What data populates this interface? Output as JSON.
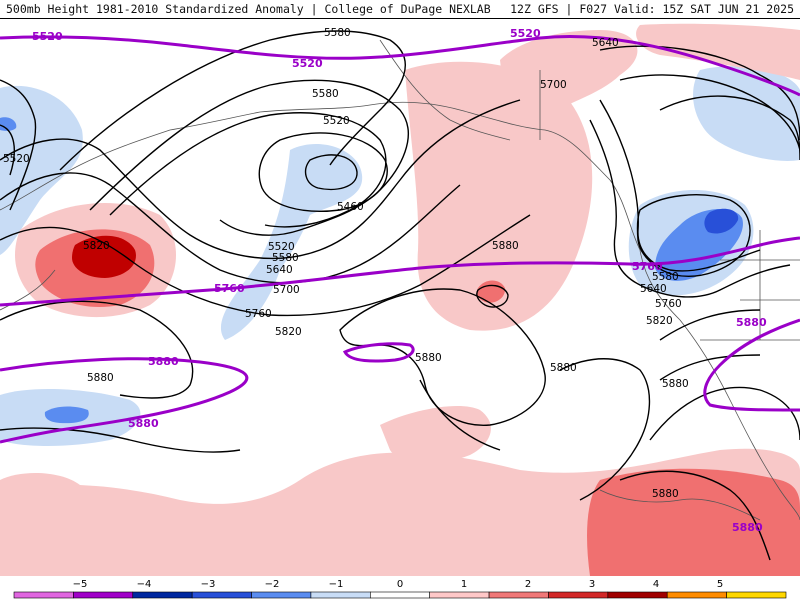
{
  "header": {
    "title": "500mb Height 1981-2010 Standardized Anomaly | College of DuPage NEXLAB",
    "run_info": "12Z GFS | F027 Valid: 15Z SAT JUN 21 2025"
  },
  "contours": {
    "black_labels": [
      "5580",
      "5580",
      "5520",
      "5520",
      "5460",
      "5520",
      "5580",
      "5640",
      "5700",
      "5760",
      "5820",
      "5880",
      "5880",
      "5880",
      "5880",
      "5700",
      "5640",
      "5580",
      "5640",
      "5760",
      "5820",
      "5880",
      "5880",
      "5820"
    ],
    "purple_labels": [
      "5520",
      "5520",
      "5520",
      "5760",
      "5760",
      "5880",
      "5880",
      "5880",
      "5880"
    ]
  },
  "colorbar": {
    "ticks": [
      "−5",
      "−4",
      "−3",
      "−2",
      "−1",
      "0",
      "1",
      "2",
      "3",
      "4",
      "5"
    ],
    "colors": [
      "#e066e0",
      "#a000c8",
      "#0028a0",
      "#2850d8",
      "#5a8cf0",
      "#c8dcf5",
      "#ffffff",
      "#ffc8c8",
      "#f07878",
      "#d22828",
      "#a00000",
      "#ff8c00",
      "#ffd700"
    ]
  },
  "colors": {
    "purple_line": "#9a00c8",
    "pos_light": "#f8c8c8",
    "pos_mid": "#f07070",
    "pos_strong": "#c00000",
    "neg_light": "#c8dcf5",
    "neg_mid": "#5a8cf0",
    "neg_strong": "#2850d8"
  }
}
